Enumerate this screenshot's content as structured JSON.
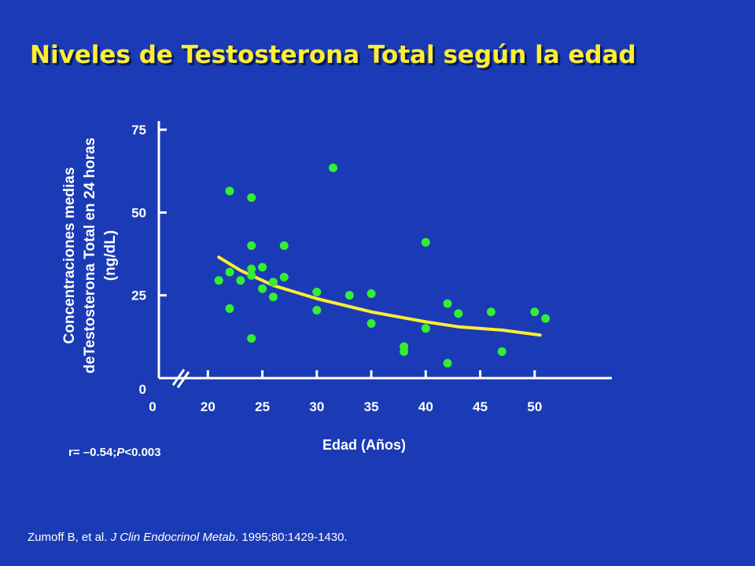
{
  "slide": {
    "title": "Niveles de Testosterona Total según la edad",
    "stat_prefix": "r= –0.54;",
    "stat_p": "P",
    "stat_suffix": "<0.003",
    "citation_authors": "Zumoff B, et al. ",
    "citation_journal": "J Clin Endocrinol Metab",
    "citation_rest": ". 1995;80:1429-1430."
  },
  "colors": {
    "background": "#1a3bb5",
    "title": "#ffee33",
    "points": "#33ee33",
    "trend": "#ffee33",
    "axis": "#ffffff"
  },
  "chart_data": {
    "type": "scatter",
    "title": "",
    "xlabel": "Edad (Años)",
    "ylabel_lines": [
      "Concentraciones medias",
      "deTestosterona Total en 24 horas",
      "(ng/dL)"
    ],
    "x_ticks": [
      "0",
      "20",
      "25",
      "30",
      "35",
      "40",
      "45",
      "50"
    ],
    "x_tick_values": [
      null,
      20,
      25,
      30,
      35,
      40,
      45,
      50
    ],
    "y_ticks": [
      "0",
      "25",
      "50",
      "75"
    ],
    "y_tick_values": [
      0,
      25,
      50,
      75
    ],
    "xlim": [
      15.5,
      56
    ],
    "ylim": [
      0,
      75
    ],
    "axis_break": true,
    "grid": false,
    "points": [
      [
        21,
        29.5
      ],
      [
        22,
        32
      ],
      [
        22,
        21
      ],
      [
        22,
        56.5
      ],
      [
        23,
        29.5
      ],
      [
        24,
        33
      ],
      [
        24,
        31
      ],
      [
        24,
        40
      ],
      [
        24,
        54.5
      ],
      [
        24,
        12
      ],
      [
        25,
        33.5
      ],
      [
        25,
        27
      ],
      [
        26,
        24.5
      ],
      [
        26,
        29
      ],
      [
        27,
        30.5
      ],
      [
        27,
        40
      ],
      [
        30,
        20.5
      ],
      [
        30,
        26
      ],
      [
        31.5,
        63.5
      ],
      [
        33,
        25
      ],
      [
        35,
        16.5
      ],
      [
        35,
        25.5
      ],
      [
        38,
        9.5
      ],
      [
        38,
        8
      ],
      [
        40,
        15
      ],
      [
        40,
        41
      ],
      [
        42,
        22.5
      ],
      [
        42,
        4.5
      ],
      [
        43,
        19.5
      ],
      [
        46,
        20
      ],
      [
        47,
        8
      ],
      [
        50,
        20
      ],
      [
        51,
        18
      ]
    ],
    "trend": [
      [
        21,
        36.5
      ],
      [
        23,
        32.5
      ],
      [
        26,
        28
      ],
      [
        30,
        24
      ],
      [
        35,
        20
      ],
      [
        40,
        17
      ],
      [
        43,
        15.5
      ],
      [
        47,
        14.5
      ],
      [
        50.5,
        13
      ]
    ]
  }
}
